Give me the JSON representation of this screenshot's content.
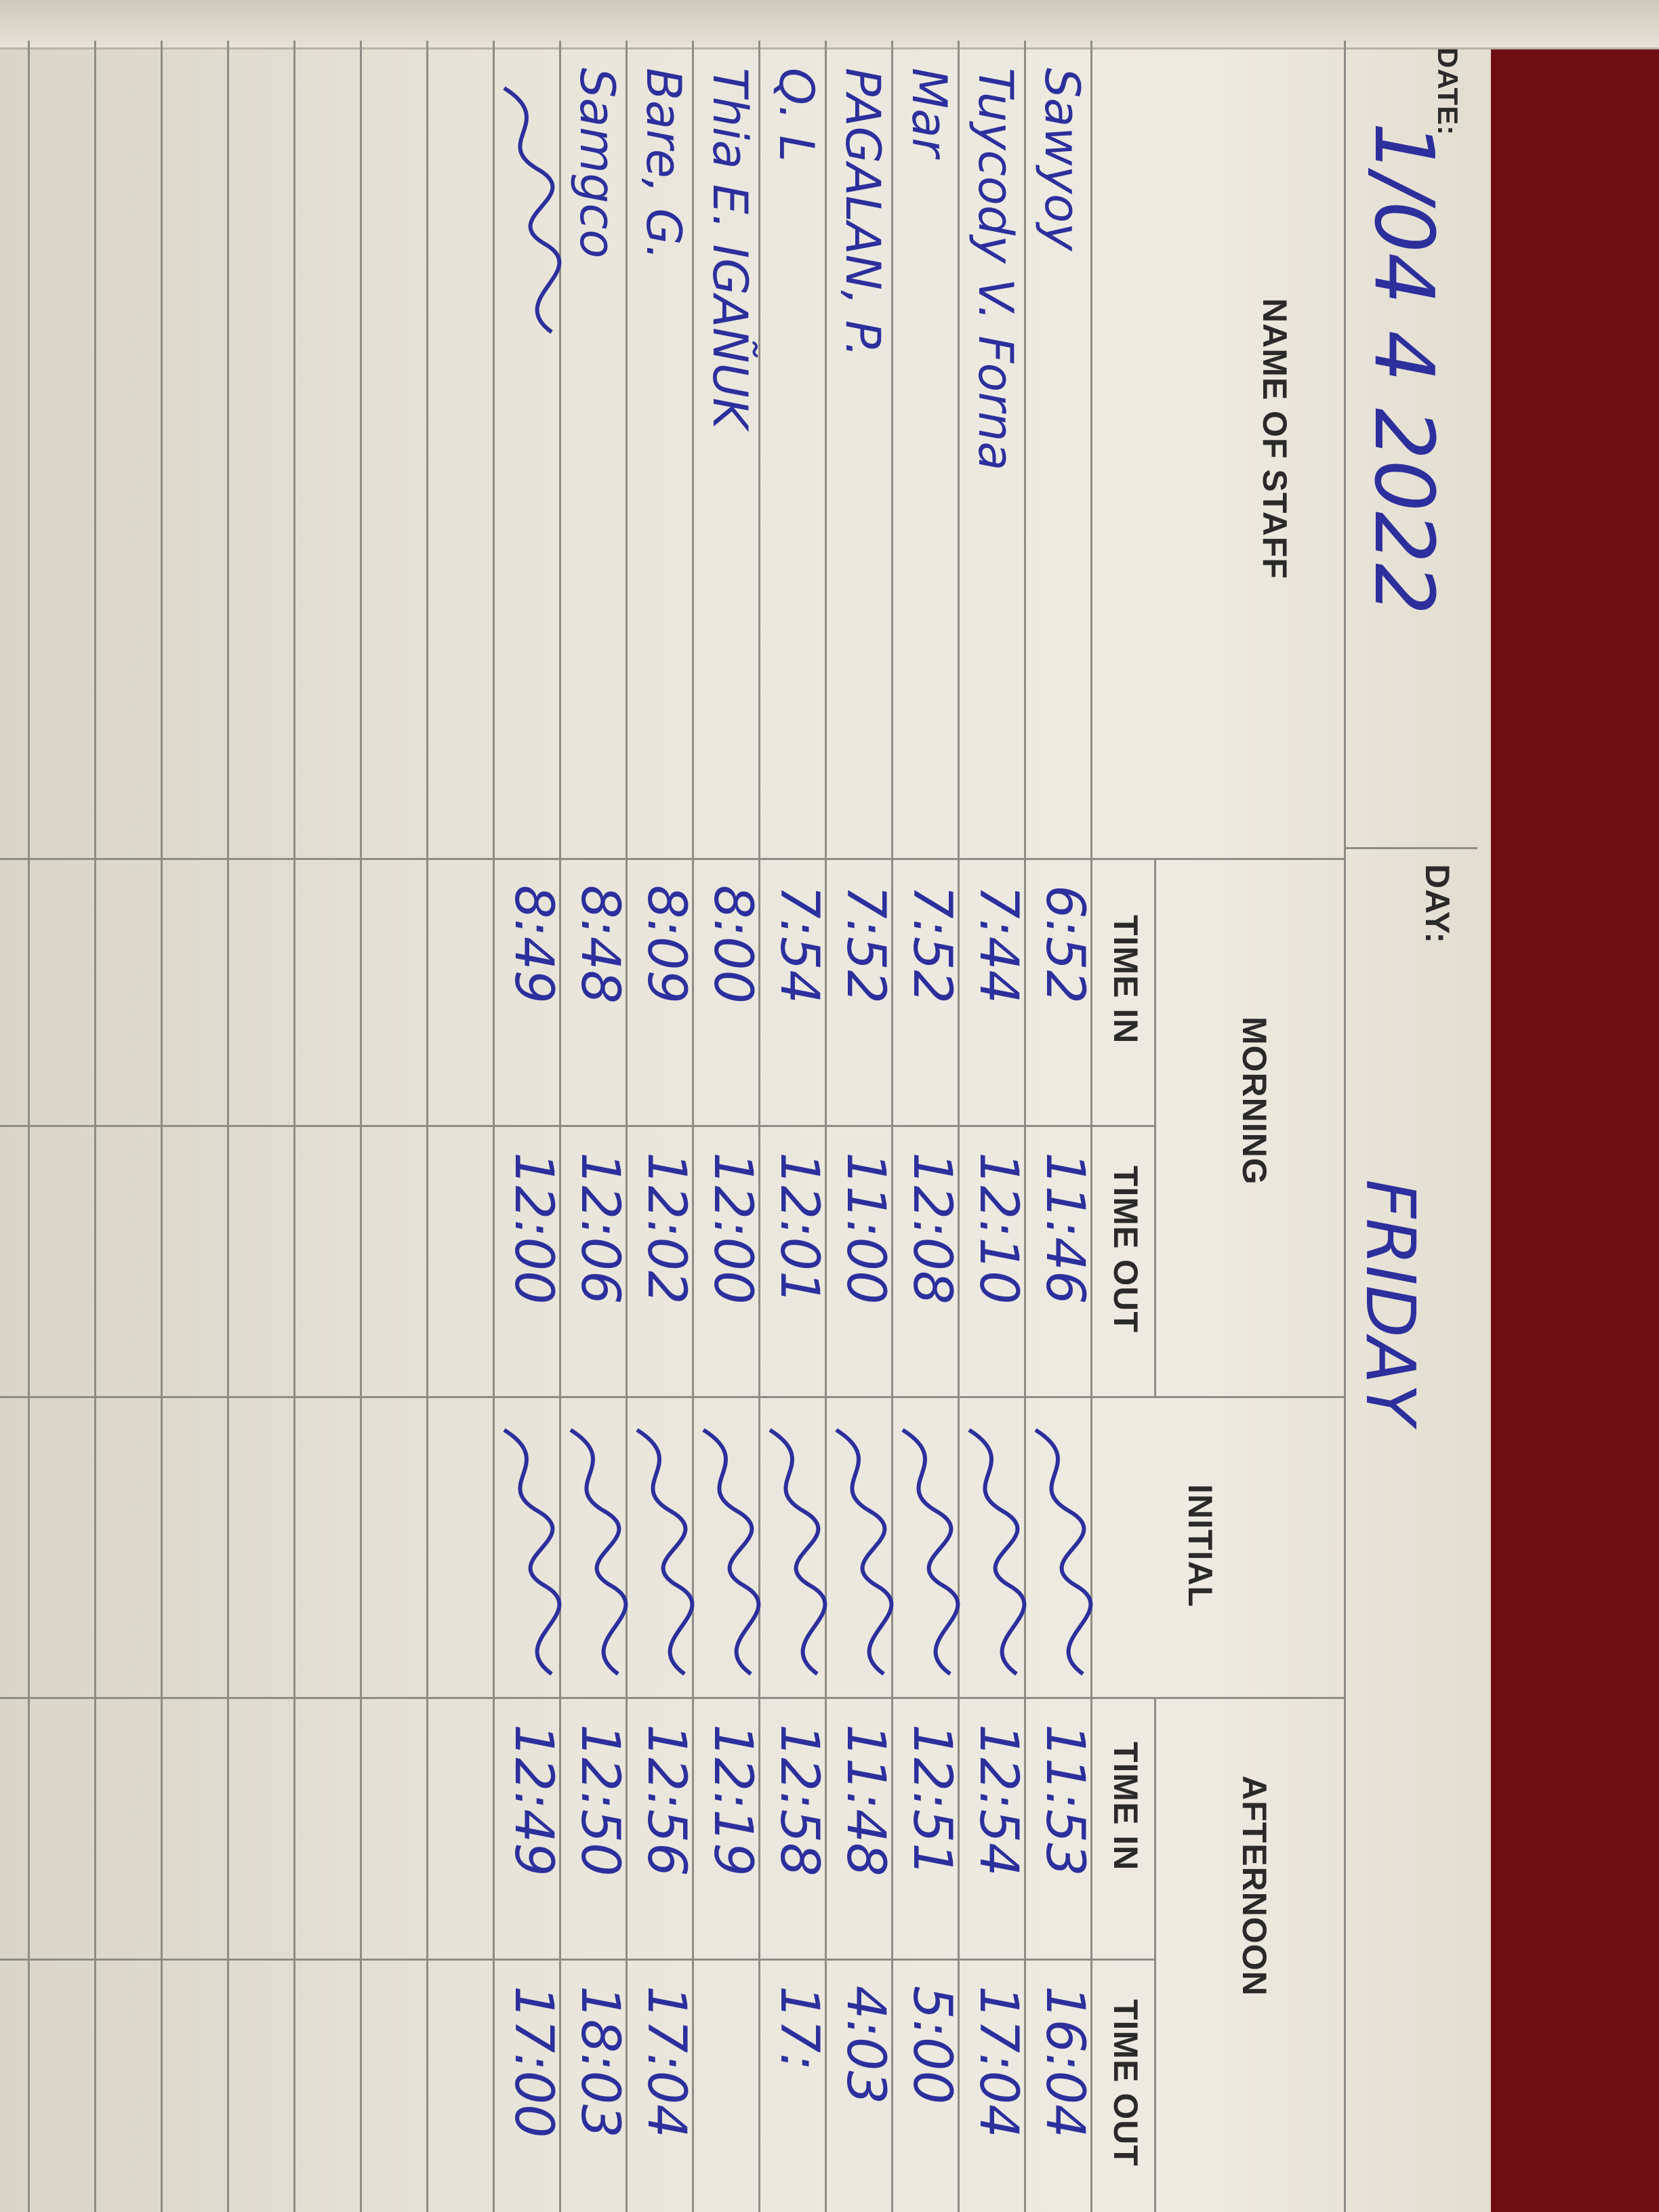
{
  "header": {
    "date_label": "DATE:",
    "date_value": "1/04 4 2022",
    "day_label": "DAY:",
    "day_value": "FRIDAY",
    "name_of_staff": "NAME OF STAFF",
    "morning": "MORNING",
    "initial": "INITIAL",
    "afternoon": "AFTERNOON",
    "time_in": "TIME IN",
    "time_out": "TIME OUT"
  },
  "ink_color": "#2d2f9c",
  "rows": [
    {
      "name": "Sawyoy",
      "am_in": "6:52",
      "am_out": "11:46",
      "pm_in": "11:53",
      "pm_out": "16:04"
    },
    {
      "name": "Tuycody V. Forna",
      "am_in": "7:44",
      "am_out": "12:10",
      "pm_in": "12:54",
      "pm_out": "17:04"
    },
    {
      "name": "Mar",
      "am_in": "7:52",
      "am_out": "12:08",
      "pm_in": "12:51",
      "pm_out": "5:00"
    },
    {
      "name": "PAGALAN, P.",
      "am_in": "7:52",
      "am_out": "11:00",
      "pm_in": "11:48",
      "pm_out": "4:03"
    },
    {
      "name": "Q. L",
      "am_in": "7:54",
      "am_out": "12:01",
      "pm_in": "12:58",
      "pm_out": "17:"
    },
    {
      "name": "Thia E. IGAÑUK",
      "am_in": "8:00",
      "am_out": "12:00",
      "pm_in": "12:19",
      "pm_out": ""
    },
    {
      "name": "Bare, G.",
      "am_in": "8:09",
      "am_out": "12:02",
      "pm_in": "12:56",
      "pm_out": "17:04"
    },
    {
      "name": "Samgco",
      "am_in": "8:48",
      "am_out": "12:06",
      "pm_in": "12:50",
      "pm_out": "18:03"
    },
    {
      "name": "",
      "am_in": "8:49",
      "am_out": "12:00",
      "pm_in": "12:49",
      "pm_out": "17:00"
    }
  ]
}
